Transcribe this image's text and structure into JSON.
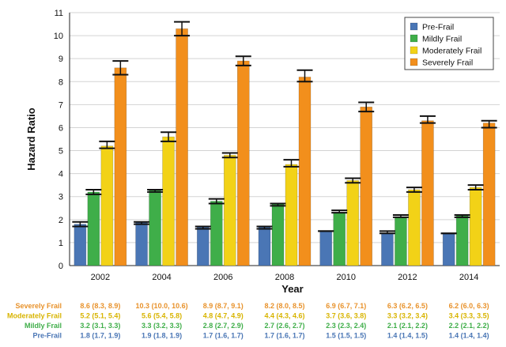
{
  "chart_data": {
    "type": "bar",
    "ylabel": "Hazard Ratio",
    "xlabel": "Year",
    "ylim": [
      0,
      11
    ],
    "yticks": [
      "0",
      "1",
      "2",
      "3",
      "4",
      "5",
      "6",
      "7",
      "8",
      "9",
      "10",
      "11"
    ],
    "categories": [
      "2002",
      "2004",
      "2006",
      "2008",
      "2010",
      "2012",
      "2014"
    ],
    "legend_position": "top-right",
    "error_bars": true,
    "series": [
      {
        "name": "Pre-Frail",
        "color": "#4a76b5",
        "values": [
          1.8,
          1.9,
          1.7,
          1.7,
          1.5,
          1.4,
          1.4
        ],
        "ci": [
          [
            1.7,
            1.9
          ],
          [
            1.8,
            1.9
          ],
          [
            1.6,
            1.7
          ],
          [
            1.6,
            1.7
          ],
          [
            1.5,
            1.5
          ],
          [
            1.4,
            1.5
          ],
          [
            1.4,
            1.4
          ]
        ],
        "labels": [
          "1.8 (1.7, 1.9)",
          "1.9 (1.8, 1.9)",
          "1.7 (1.6, 1.7)",
          "1.7 (1.6, 1.7)",
          "1.5 (1.5, 1.5)",
          "1.4 (1.4, 1.5)",
          "1.4 (1.4, 1.4)"
        ]
      },
      {
        "name": "Mildly Frail",
        "color": "#3fae49",
        "values": [
          3.2,
          3.3,
          2.8,
          2.7,
          2.3,
          2.1,
          2.2
        ],
        "ci": [
          [
            3.1,
            3.3
          ],
          [
            3.2,
            3.3
          ],
          [
            2.7,
            2.9
          ],
          [
            2.6,
            2.7
          ],
          [
            2.3,
            2.4
          ],
          [
            2.1,
            2.2
          ],
          [
            2.1,
            2.2
          ]
        ],
        "labels": [
          "3.2 (3.1, 3.3)",
          "3.3 (3.2, 3.3)",
          "2.8 (2.7, 2.9)",
          "2.7 (2.6, 2.7)",
          "2.3 (2.3, 2.4)",
          "2.1 (2.1, 2.2)",
          "2.2 (2.1, 2.2)"
        ]
      },
      {
        "name": "Moderately Frail",
        "color": "#f2d217",
        "values": [
          5.2,
          5.6,
          4.8,
          4.4,
          3.7,
          3.3,
          3.4
        ],
        "ci": [
          [
            5.1,
            5.4
          ],
          [
            5.4,
            5.8
          ],
          [
            4.7,
            4.9
          ],
          [
            4.3,
            4.6
          ],
          [
            3.6,
            3.8
          ],
          [
            3.2,
            3.4
          ],
          [
            3.3,
            3.5
          ]
        ],
        "labels": [
          "5.2 (5.1, 5.4)",
          "5.6 (5.4, 5.8)",
          "4.8 (4.7, 4.9)",
          "4.4 (4.3, 4.6)",
          "3.7 (3.6, 3.8)",
          "3.3 (3.2, 3.4)",
          "3.4 (3.3, 3.5)"
        ]
      },
      {
        "name": "Severely Frail",
        "color": "#f28f1c",
        "values": [
          8.6,
          10.3,
          8.9,
          8.2,
          6.9,
          6.3,
          6.2
        ],
        "ci": [
          [
            8.3,
            8.9
          ],
          [
            10.0,
            10.6
          ],
          [
            8.7,
            9.1
          ],
          [
            8.0,
            8.5
          ],
          [
            6.7,
            7.1
          ],
          [
            6.2,
            6.5
          ],
          [
            6.0,
            6.3
          ]
        ],
        "labels": [
          "8.6 (8.3, 8.9)",
          "10.3 (10.0, 10.6)",
          "8.9 (8.7, 9.1)",
          "8.2 (8.0, 8.5)",
          "6.9 (6.7, 7.1)",
          "6.3 (6.2, 6.5)",
          "6.2 (6.0, 6.3)"
        ]
      }
    ],
    "table": {
      "row_order": [
        "Severely Frail",
        "Moderately Frail",
        "Mildly Frail",
        "Pre-Frail"
      ],
      "row_colors": [
        "#e8922b",
        "#d8b400",
        "#3fae49",
        "#4a76b5"
      ]
    }
  }
}
